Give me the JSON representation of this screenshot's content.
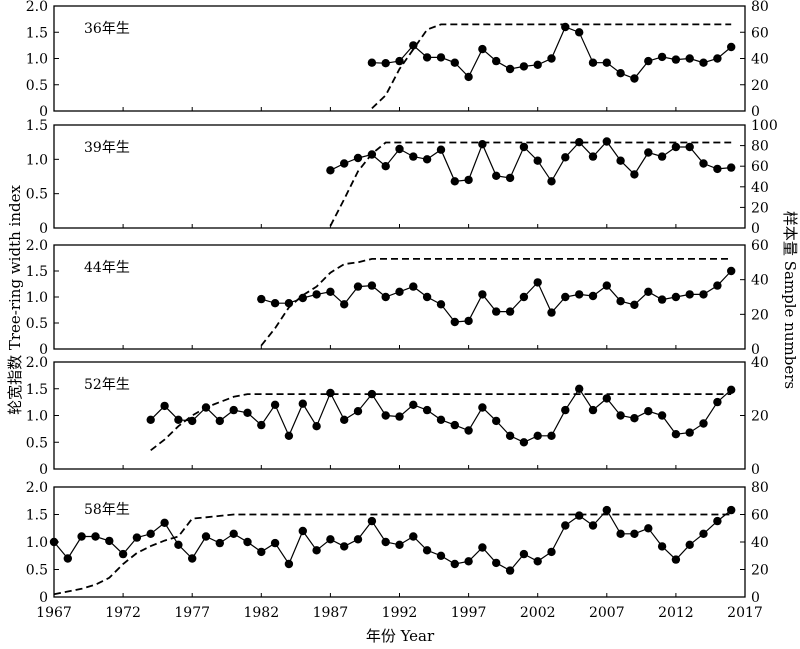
{
  "chart_data": [
    {
      "type": "line",
      "panel_label": "36年生",
      "ylim_left": [
        0,
        2.0
      ],
      "yticks_left": [
        "0",
        "0.5",
        "1.0",
        "1.5",
        "2.0"
      ],
      "ylim_right": [
        0,
        80
      ],
      "yticks_right": [
        "0",
        "20",
        "40",
        "60",
        "80"
      ],
      "series": [
        {
          "role": "index",
          "style": "solid-dots",
          "x_start": 1990,
          "values": [
            0.92,
            0.91,
            0.95,
            1.25,
            1.02,
            1.02,
            0.92,
            0.65,
            1.18,
            0.95,
            0.8,
            0.85,
            0.88,
            1.0,
            1.6,
            1.5,
            0.92,
            0.92,
            0.72,
            0.62,
            0.95,
            1.03,
            0.98,
            1.0,
            0.92,
            1.0,
            1.22
          ]
        },
        {
          "role": "sample",
          "style": "dashed",
          "points": [
            [
              1990,
              2
            ],
            [
              1991,
              12
            ],
            [
              1992,
              32
            ],
            [
              1993,
              47
            ],
            [
              1994,
              62
            ],
            [
              1995,
              66
            ],
            [
              2016,
              66
            ]
          ]
        }
      ]
    },
    {
      "type": "line",
      "panel_label": "39年生",
      "ylim_left": [
        0,
        1.5
      ],
      "yticks_left": [
        "0",
        "0.5",
        "1.0",
        "1.5"
      ],
      "ylim_right": [
        0,
        100
      ],
      "yticks_right": [
        "0",
        "20",
        "40",
        "60",
        "80",
        "100"
      ],
      "series": [
        {
          "role": "index",
          "style": "solid-dots",
          "x_start": 1987,
          "values": [
            0.84,
            0.94,
            1.02,
            1.07,
            0.9,
            1.15,
            1.04,
            1.0,
            1.14,
            0.68,
            0.7,
            1.22,
            0.76,
            0.73,
            1.18,
            0.98,
            0.68,
            1.03,
            1.25,
            1.04,
            1.26,
            0.98,
            0.78,
            1.1,
            1.04,
            1.18,
            1.18,
            0.94,
            0.86,
            0.88
          ]
        },
        {
          "role": "sample",
          "style": "dashed",
          "points": [
            [
              1987,
              2
            ],
            [
              1988,
              28
            ],
            [
              1989,
              55
            ],
            [
              1990,
              72
            ],
            [
              1991,
              83
            ],
            [
              2016,
              83
            ]
          ]
        }
      ]
    },
    {
      "type": "line",
      "panel_label": "44年生",
      "ylim_left": [
        0,
        2.0
      ],
      "yticks_left": [
        "0",
        "0.5",
        "1.0",
        "1.5",
        "2.0"
      ],
      "ylim_right": [
        0,
        60
      ],
      "yticks_right": [
        "0",
        "20",
        "40",
        "60"
      ],
      "series": [
        {
          "role": "index",
          "style": "solid-dots",
          "x_start": 1982,
          "values": [
            0.96,
            0.88,
            0.88,
            0.98,
            1.05,
            1.1,
            0.86,
            1.2,
            1.22,
            1.0,
            1.1,
            1.2,
            1.0,
            0.86,
            0.52,
            0.54,
            1.05,
            0.72,
            0.72,
            1.0,
            1.28,
            0.7,
            1.0,
            1.05,
            1.02,
            1.22,
            0.92,
            0.85,
            1.1,
            0.95,
            1.0,
            1.05,
            1.05,
            1.22,
            1.5
          ]
        },
        {
          "role": "sample",
          "style": "dashed",
          "points": [
            [
              1982,
              2
            ],
            [
              1983,
              12
            ],
            [
              1984,
              24
            ],
            [
              1985,
              31
            ],
            [
              1986,
              36
            ],
            [
              1987,
              44
            ],
            [
              1988,
              49
            ],
            [
              1989,
              50
            ],
            [
              1990,
              52
            ],
            [
              2016,
              52
            ]
          ]
        }
      ]
    },
    {
      "type": "line",
      "panel_label": "52年生",
      "ylim_left": [
        0,
        2.0
      ],
      "yticks_left": [
        "0",
        "0.5",
        "1.0",
        "1.5",
        "2.0"
      ],
      "ylim_right": [
        0,
        40
      ],
      "yticks_right": [
        "0",
        "20",
        "40"
      ],
      "series": [
        {
          "role": "index",
          "style": "solid-dots",
          "x_start": 1974,
          "values": [
            0.92,
            1.18,
            0.92,
            0.9,
            1.15,
            0.9,
            1.1,
            1.05,
            0.82,
            1.2,
            0.62,
            1.22,
            0.8,
            1.42,
            0.92,
            1.08,
            1.4,
            1.0,
            0.98,
            1.2,
            1.1,
            0.92,
            0.82,
            0.72,
            1.15,
            0.9,
            0.62,
            0.5,
            0.62,
            0.62,
            1.1,
            1.5,
            1.1,
            1.32,
            1.0,
            0.95,
            1.08,
            1.0,
            0.65,
            0.68,
            0.85,
            1.25,
            1.48
          ]
        },
        {
          "role": "sample",
          "style": "dashed",
          "points": [
            [
              1974,
              7
            ],
            [
              1975,
              11
            ],
            [
              1976,
              16
            ],
            [
              1977,
              20
            ],
            [
              1978,
              23
            ],
            [
              1979,
              25
            ],
            [
              1980,
              27
            ],
            [
              1981,
              28
            ],
            [
              2016,
              28
            ]
          ]
        }
      ]
    },
    {
      "type": "line",
      "panel_label": "58年生",
      "ylim_left": [
        0,
        2.0
      ],
      "yticks_left": [
        "0",
        "0.5",
        "1.0",
        "1.5",
        "2.0"
      ],
      "ylim_right": [
        0,
        80
      ],
      "yticks_right": [
        "0",
        "20",
        "40",
        "60",
        "80"
      ],
      "xlim": [
        1967,
        2017
      ],
      "xticks": [
        "1967",
        "1972",
        "1977",
        "1982",
        "1987",
        "1992",
        "1997",
        "2002",
        "2007",
        "2012",
        "2017"
      ],
      "series": [
        {
          "role": "index",
          "style": "solid-dots",
          "x_start": 1967,
          "values": [
            1.0,
            0.7,
            1.1,
            1.1,
            1.02,
            0.78,
            1.08,
            1.15,
            1.35,
            0.95,
            0.7,
            1.1,
            0.98,
            1.15,
            1.0,
            0.82,
            0.98,
            0.6,
            1.2,
            0.85,
            1.05,
            0.92,
            1.05,
            1.38,
            1.0,
            0.95,
            1.1,
            0.85,
            0.75,
            0.6,
            0.65,
            0.9,
            0.62,
            0.48,
            0.78,
            0.65,
            0.82,
            1.3,
            1.48,
            1.3,
            1.58,
            1.15,
            1.15,
            1.25,
            0.92,
            0.68,
            0.95,
            1.15,
            1.38,
            1.58
          ]
        },
        {
          "role": "sample",
          "style": "dashed",
          "points": [
            [
              1967,
              2
            ],
            [
              1968,
              4
            ],
            [
              1969,
              6
            ],
            [
              1970,
              9
            ],
            [
              1971,
              14
            ],
            [
              1972,
              24
            ],
            [
              1973,
              32
            ],
            [
              1974,
              37
            ],
            [
              1975,
              41
            ],
            [
              1976,
              44
            ],
            [
              1977,
              57
            ],
            [
              1978,
              58
            ],
            [
              1979,
              59
            ],
            [
              1980,
              60
            ],
            [
              2016,
              60
            ]
          ]
        }
      ]
    }
  ],
  "axes": {
    "left_title": "轮宽指数 Tree-ring width index",
    "right_title": "样本量 Sample numbers",
    "x_title": "年份 Year"
  }
}
